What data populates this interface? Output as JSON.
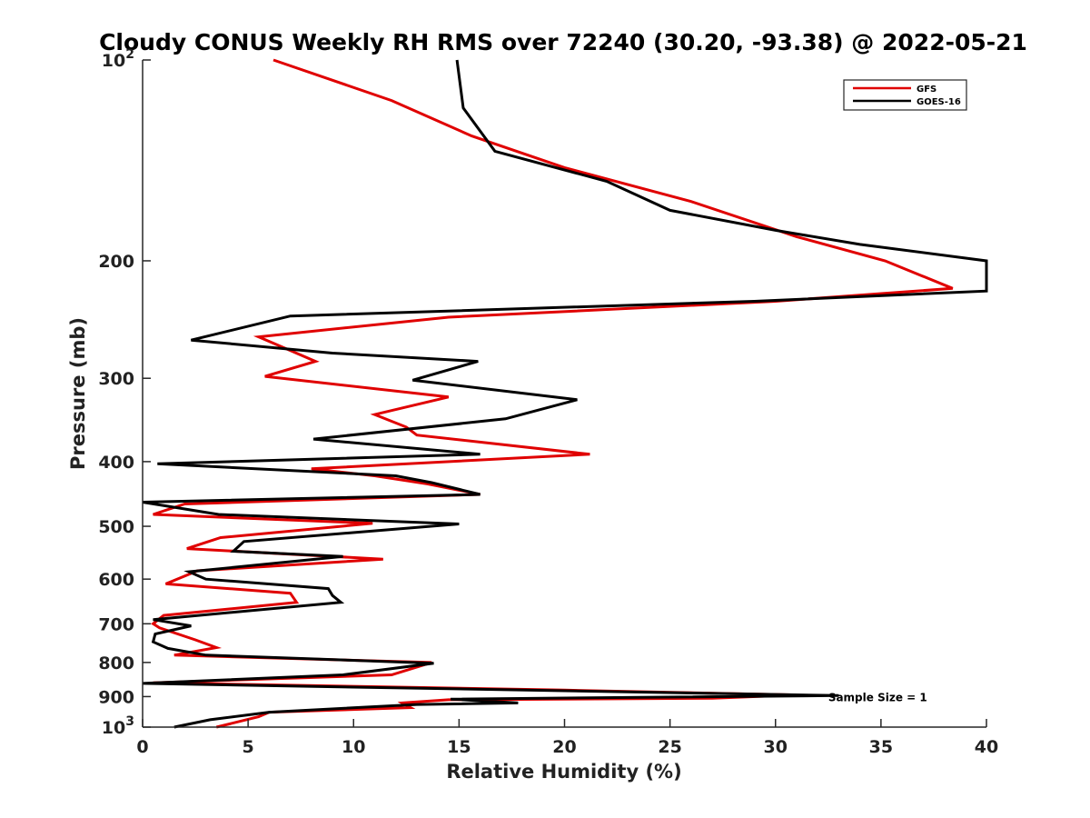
{
  "chart_data": {
    "type": "line",
    "title": "Cloudy CONUS Weekly RH RMS over 72240 (30.20, -93.38) @ 2022-05-21",
    "xlabel": "Relative Humidity (%)",
    "ylabel": "Pressure (mb)",
    "xlim": [
      0,
      40
    ],
    "ylim": [
      1000,
      100
    ],
    "yscale": "log",
    "grid": false,
    "legend_position": "top-right",
    "x_ticks": [
      0,
      5,
      10,
      15,
      20,
      25,
      30,
      35,
      40
    ],
    "x_tick_labels": [
      "0",
      "5",
      "10",
      "15",
      "20",
      "25",
      "30",
      "35",
      "40"
    ],
    "y_ticks": [
      100,
      200,
      300,
      400,
      500,
      600,
      700,
      800,
      900,
      1000
    ],
    "y_tick_labels": [
      {
        "base": "10",
        "exp": "2"
      },
      {
        "base": "200",
        "exp": ""
      },
      {
        "base": "300",
        "exp": ""
      },
      {
        "base": "400",
        "exp": ""
      },
      {
        "base": "500",
        "exp": ""
      },
      {
        "base": "600",
        "exp": ""
      },
      {
        "base": "700",
        "exp": ""
      },
      {
        "base": "800",
        "exp": ""
      },
      {
        "base": "900",
        "exp": ""
      },
      {
        "base": "10",
        "exp": "3"
      }
    ],
    "annotation": "Sample Size = 1",
    "annotation_at": {
      "x": 32.5,
      "y": 900
    },
    "series": [
      {
        "name": "GFS",
        "color": "#e00000",
        "points": [
          [
            6.2,
            100
          ],
          [
            11.8,
            115
          ],
          [
            15.6,
            130
          ],
          [
            20.0,
            145
          ],
          [
            26.0,
            163
          ],
          [
            31.0,
            184
          ],
          [
            35.2,
            200
          ],
          [
            38.4,
            220
          ],
          [
            30.0,
            230
          ],
          [
            14.5,
            243
          ],
          [
            5.5,
            260
          ],
          [
            8.2,
            283
          ],
          [
            5.8,
            298
          ],
          [
            14.5,
            320
          ],
          [
            11.0,
            340
          ],
          [
            12.5,
            355
          ],
          [
            13.0,
            365
          ],
          [
            21.2,
            390
          ],
          [
            8.0,
            410
          ],
          [
            11.0,
            420
          ],
          [
            13.5,
            432
          ],
          [
            16.0,
            448
          ],
          [
            2.0,
            463
          ],
          [
            0.5,
            480
          ],
          [
            10.9,
            495
          ],
          [
            3.7,
            520
          ],
          [
            2.1,
            540
          ],
          [
            11.4,
            560
          ],
          [
            2.6,
            583
          ],
          [
            1.1,
            610
          ],
          [
            7.0,
            630
          ],
          [
            7.3,
            650
          ],
          [
            1.0,
            680
          ],
          [
            0.5,
            700
          ],
          [
            0.8,
            710
          ],
          [
            2.5,
            740
          ],
          [
            3.5,
            760
          ],
          [
            1.5,
            780
          ],
          [
            13.7,
            800
          ],
          [
            11.8,
            835
          ],
          [
            0.5,
            858
          ],
          [
            20.0,
            880
          ],
          [
            31.0,
            895
          ],
          [
            27.0,
            905
          ],
          [
            14.5,
            910
          ],
          [
            12.3,
            920
          ],
          [
            12.7,
            935
          ],
          [
            6.0,
            950
          ],
          [
            5.5,
            965
          ],
          [
            3.5,
            1000
          ]
        ]
      },
      {
        "name": "GOES-16",
        "color": "#000000",
        "points": [
          [
            14.9,
            100
          ],
          [
            15.2,
            118
          ],
          [
            16.7,
            137
          ],
          [
            22.0,
            152
          ],
          [
            25.0,
            168
          ],
          [
            30.0,
            180
          ],
          [
            34.0,
            189
          ],
          [
            40.0,
            200
          ],
          [
            40.0,
            222
          ],
          [
            29.0,
            230
          ],
          [
            7.0,
            242
          ],
          [
            2.3,
            263
          ],
          [
            9.0,
            275
          ],
          [
            15.9,
            283
          ],
          [
            12.8,
            302
          ],
          [
            20.6,
            323
          ],
          [
            17.2,
            345
          ],
          [
            8.1,
            370
          ],
          [
            16.0,
            390
          ],
          [
            0.7,
            403
          ],
          [
            12.0,
            420
          ],
          [
            13.7,
            430
          ],
          [
            16.0,
            448
          ],
          [
            0.0,
            460
          ],
          [
            3.6,
            480
          ],
          [
            15.0,
            496
          ],
          [
            4.8,
            527
          ],
          [
            4.3,
            545
          ],
          [
            9.5,
            555
          ],
          [
            2.2,
            585
          ],
          [
            3.0,
            600
          ],
          [
            8.8,
            620
          ],
          [
            9.0,
            635
          ],
          [
            9.4,
            650
          ],
          [
            0.5,
            690
          ],
          [
            2.3,
            705
          ],
          [
            0.6,
            725
          ],
          [
            0.5,
            745
          ],
          [
            1.2,
            762
          ],
          [
            3.0,
            780
          ],
          [
            13.8,
            802
          ],
          [
            9.5,
            835
          ],
          [
            0.0,
            860
          ],
          [
            33.0,
            897
          ],
          [
            14.6,
            908
          ],
          [
            17.8,
            920
          ],
          [
            13.0,
            925
          ],
          [
            6.0,
            950
          ],
          [
            3.2,
            975
          ],
          [
            1.5,
            1000
          ]
        ]
      }
    ]
  }
}
